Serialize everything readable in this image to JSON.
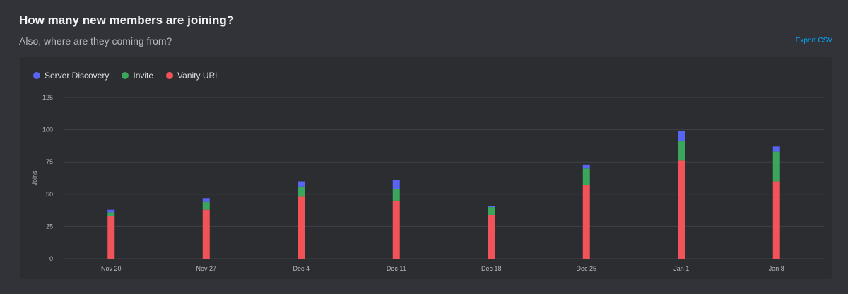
{
  "header": {
    "title": "How many new members are joining?",
    "subtitle": "Also, where are they coming from?",
    "export_label": "Export CSV"
  },
  "colors": {
    "server_discovery": "#5865f2",
    "invite": "#3ba55c",
    "vanity_url": "#f25359"
  },
  "chart_data": {
    "type": "bar",
    "stacked": true,
    "categories": [
      "Nov 20",
      "Nov 27",
      "Dec 4",
      "Dec 11",
      "Dec 18",
      "Dec 25",
      "Jan 1",
      "Jan 8"
    ],
    "series": [
      {
        "name": "Vanity URL",
        "color": "#f25359",
        "values": [
          33,
          38,
          48,
          45,
          34,
          57,
          76,
          60
        ]
      },
      {
        "name": "Invite",
        "color": "#3ba55c",
        "values": [
          3,
          6,
          8,
          9,
          6,
          13,
          15,
          23
        ]
      },
      {
        "name": "Server Discovery",
        "color": "#5865f2",
        "values": [
          2,
          3,
          4,
          7,
          1,
          3,
          8,
          4
        ]
      }
    ],
    "legend_order": [
      "Server Discovery",
      "Invite",
      "Vanity URL"
    ],
    "ylabel": "Joins",
    "ylim": [
      0,
      125
    ],
    "yticks": [
      0,
      25,
      50,
      75,
      100,
      125
    ],
    "grid": true,
    "legend_position": "top-left"
  }
}
